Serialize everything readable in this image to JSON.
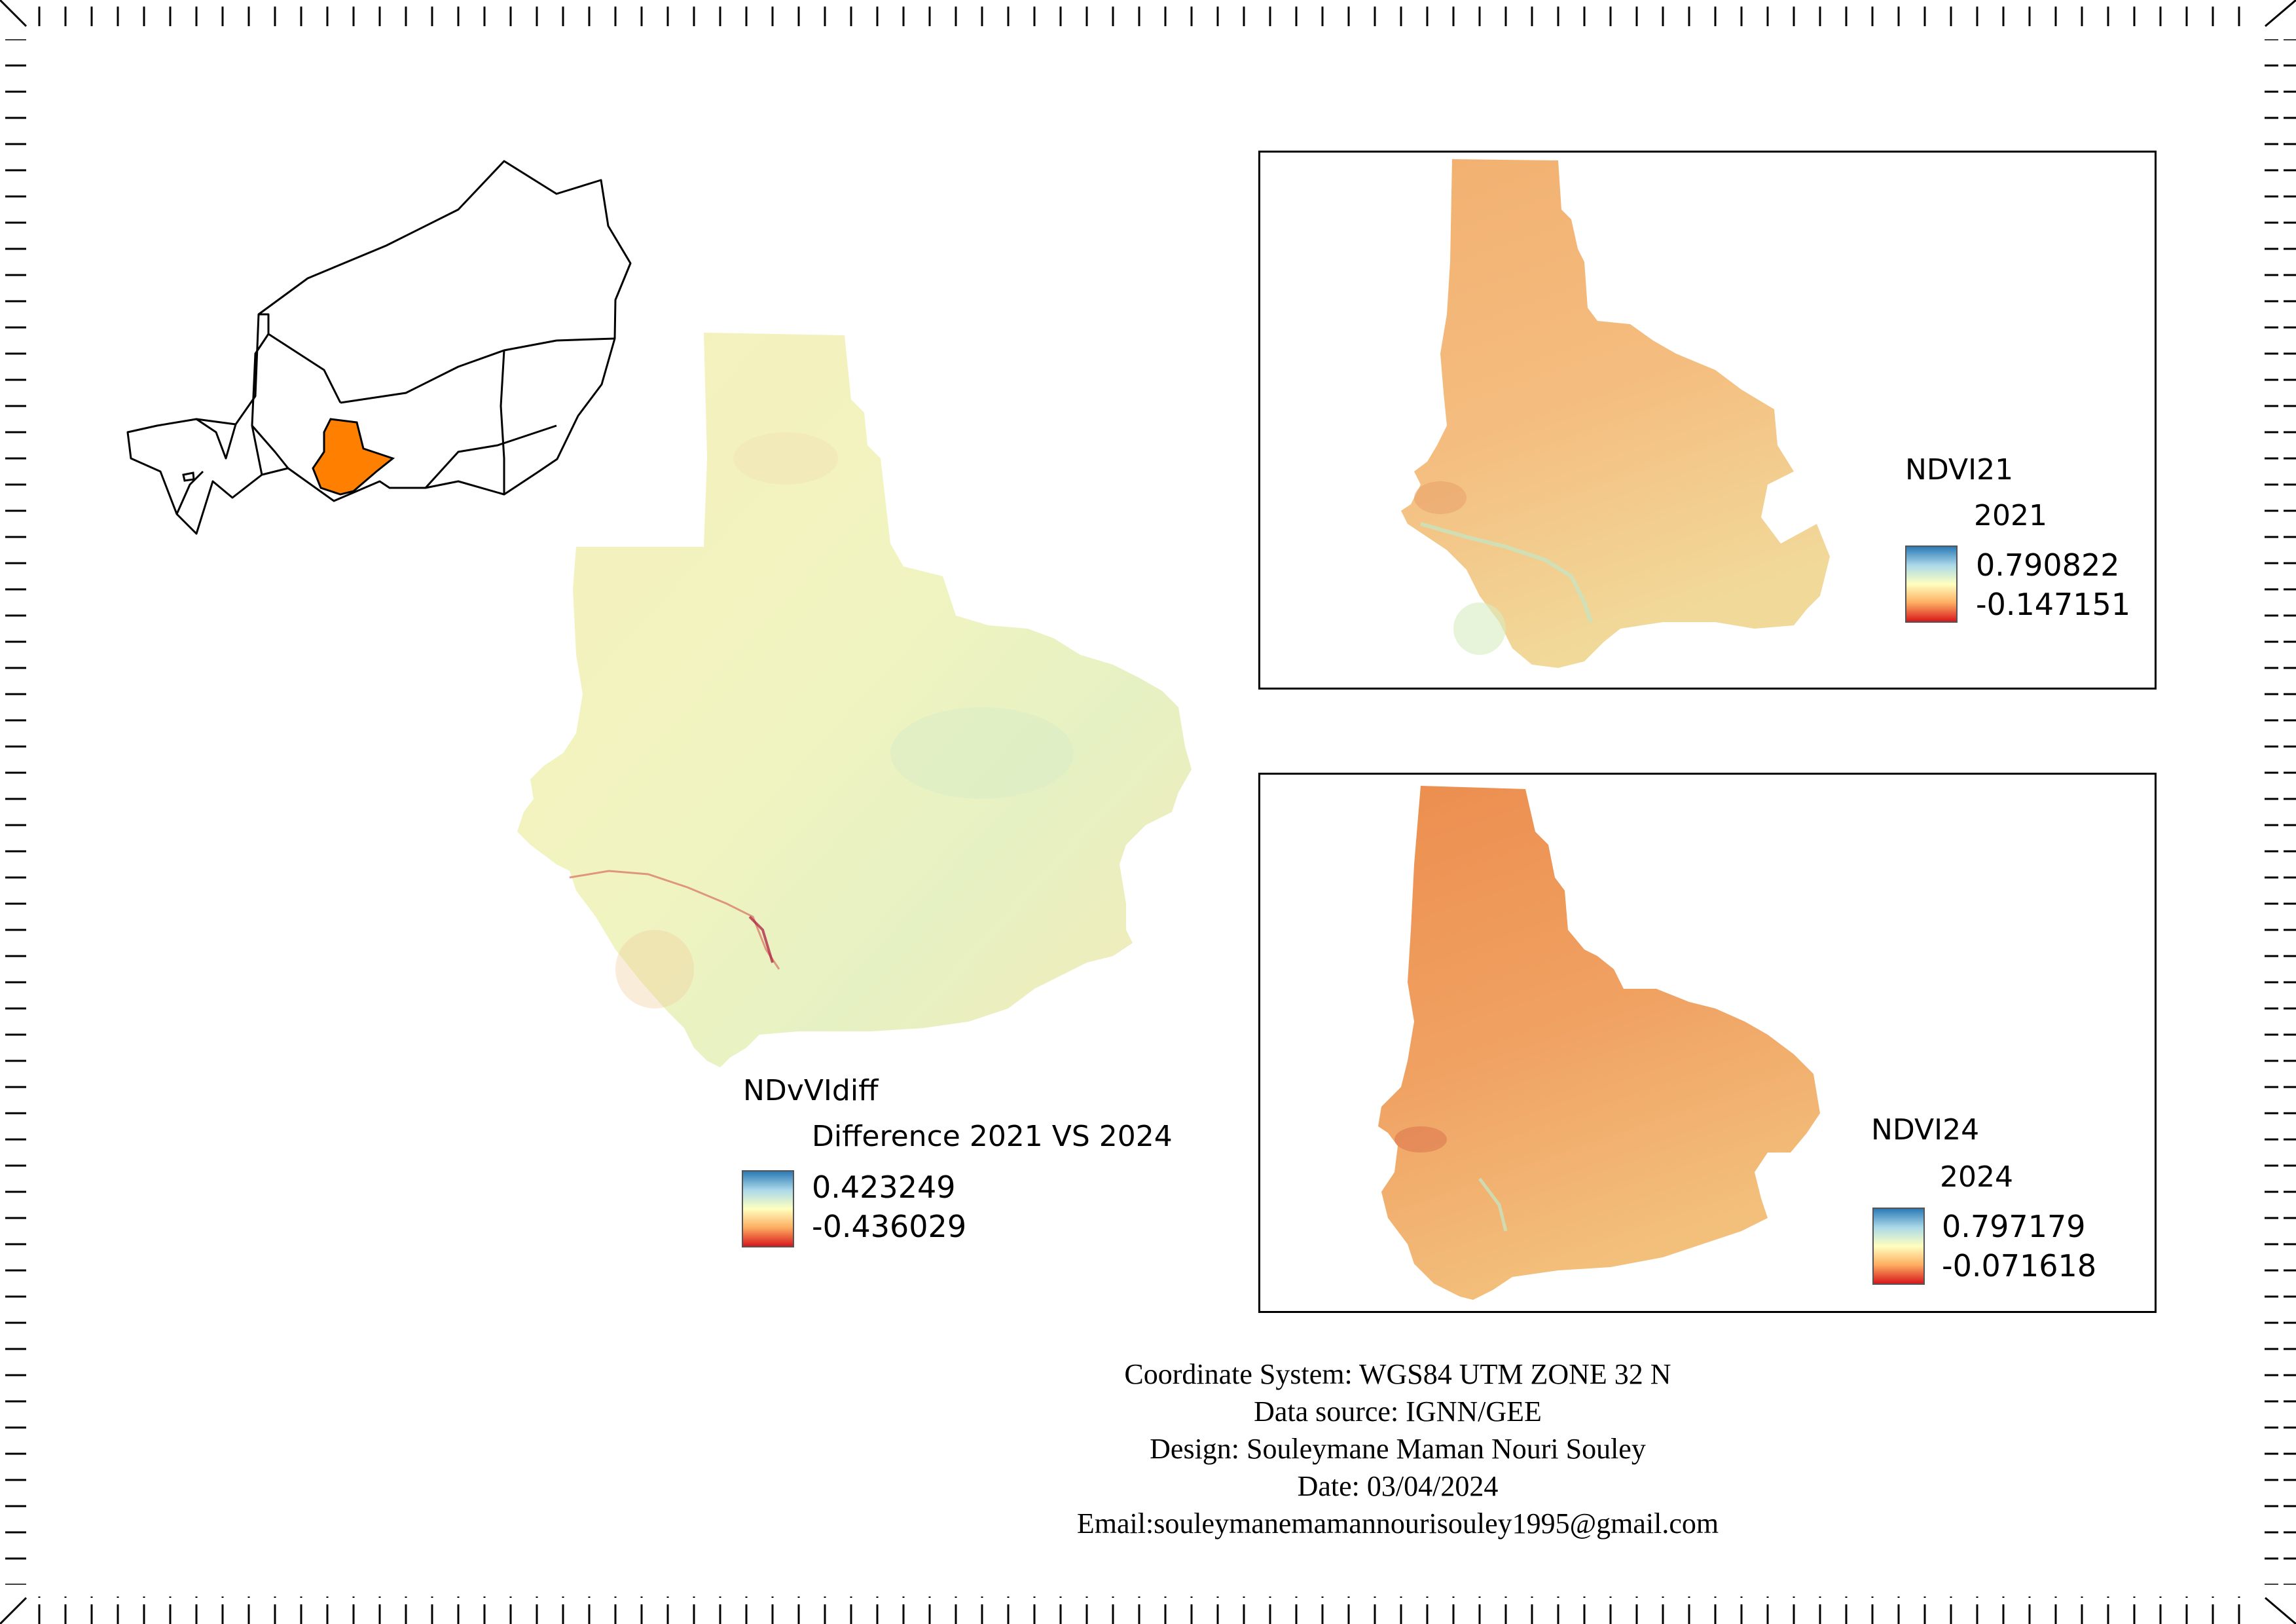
{
  "main_map": {
    "layer_name": "NDvVIdiff",
    "subtitle": "Difference 2021 VS 2024",
    "max": "0.423249",
    "min": "-0.436029"
  },
  "inset_2021": {
    "layer_name": "NDVI21",
    "subtitle": "2021",
    "max": "0.790822",
    "min": "-0.147151"
  },
  "inset_2024": {
    "layer_name": "NDVI24",
    "subtitle": "2024",
    "max": "0.797179",
    "min": "-0.071618"
  },
  "credits": {
    "crs": "Coordinate System: WGS84 UTM ZONE 32 N",
    "source": "Data source: IGNN/GEE",
    "design": "Design: Souleymane Maman Nouri Souley",
    "date": "Date: 03/04/2024",
    "email": "Email:souleymanemamannourisouley1995@gmail.com"
  },
  "colors": {
    "highlight_region": "#ff8000",
    "ramp_high": "#2c7bb6",
    "ramp_mid": "#ffffbf",
    "ramp_low": "#d7191c",
    "diff_fill": "#f2f3b6",
    "ndvi21_fill": "#f4b877",
    "ndvi24_fill": "#ef9b57"
  },
  "color_ramp": "RdYlBu (spectral)"
}
